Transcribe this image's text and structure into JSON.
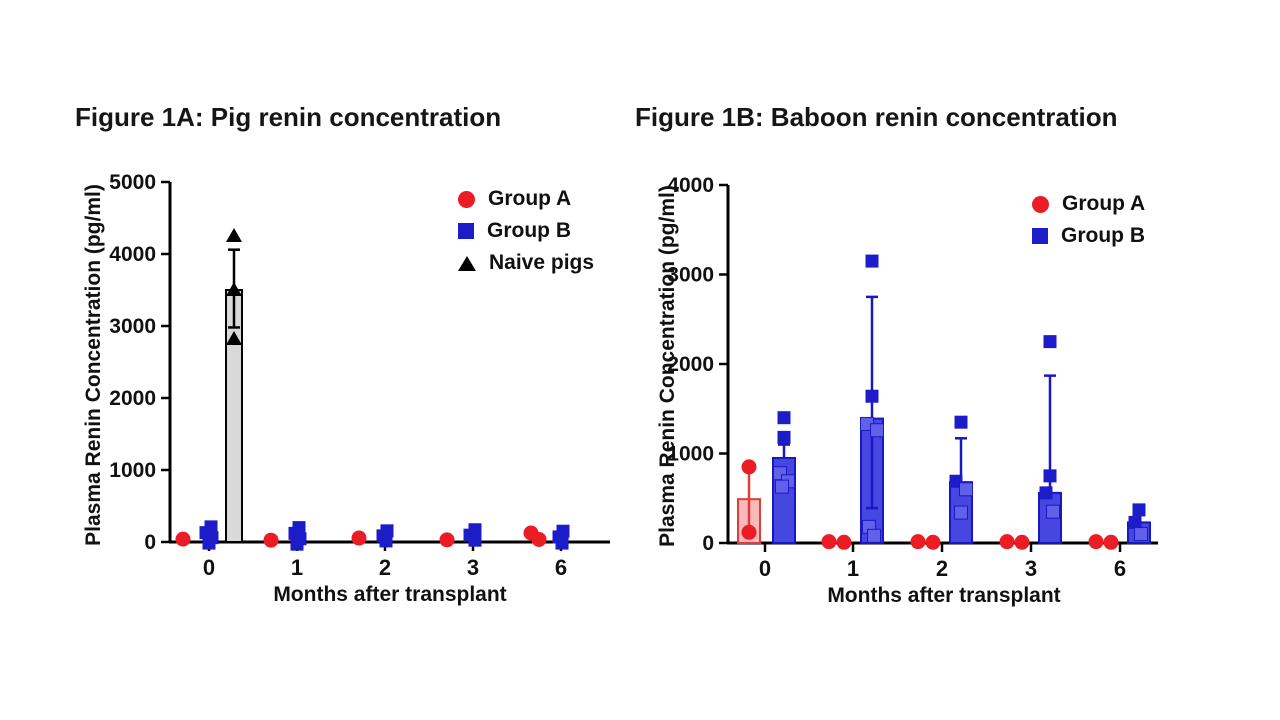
{
  "page": {
    "background": "#ffffff"
  },
  "chart_data": [
    {
      "id": "fig1a",
      "type": "scatter",
      "title": "Figure 1A: Pig renin concentration",
      "xlabel": "Months after transplant",
      "ylabel": "Plasma Renin Concentration (pg/ml)",
      "categories": [
        "0",
        "1",
        "2",
        "3",
        "6"
      ],
      "ylim": [
        0,
        5000
      ],
      "ytick_step": 1000,
      "legend_position": "top-right-inside",
      "legend": [
        {
          "label": "Group A",
          "marker": "circle",
          "color": "#ec1c24"
        },
        {
          "label": "Group B",
          "marker": "square",
          "color": "#1c1cc8"
        },
        {
          "label": "Naive pigs",
          "marker": "triangle",
          "color": "#000000"
        }
      ],
      "bars": [
        {
          "series": "Naive pigs",
          "category_index": 0,
          "mean": 3500,
          "err_low": 2980,
          "err_high": 4060,
          "fill": "#d9d9d9",
          "stroke": "#000000"
        }
      ],
      "series": [
        {
          "name": "Group A",
          "marker": "circle",
          "color": "#ec1c24",
          "points": [
            [
              0,
              40,
              0
            ],
            [
              1,
              25,
              0
            ],
            [
              2,
              55,
              0
            ],
            [
              3,
              30,
              0
            ],
            [
              4,
              125,
              -4
            ],
            [
              4,
              35,
              4
            ]
          ]
        },
        {
          "name": "Group B",
          "marker": "square",
          "color": "#1c1cc8",
          "points": [
            [
              0,
              210,
              2
            ],
            [
              0,
              130,
              -3
            ],
            [
              0,
              60,
              3
            ],
            [
              0,
              -15,
              0
            ],
            [
              1,
              200,
              2
            ],
            [
              1,
              120,
              -2
            ],
            [
              1,
              45,
              3
            ],
            [
              1,
              -30,
              0
            ],
            [
              2,
              155,
              2
            ],
            [
              2,
              85,
              -2
            ],
            [
              2,
              15,
              1
            ],
            [
              3,
              170,
              2
            ],
            [
              3,
              95,
              -3
            ],
            [
              3,
              25,
              2
            ],
            [
              4,
              150,
              2
            ],
            [
              4,
              70,
              -2
            ],
            [
              4,
              -15,
              1
            ]
          ]
        },
        {
          "name": "Naive pigs",
          "marker": "triangle",
          "color": "#000000",
          "points": [
            [
              0,
              4250,
              0
            ],
            [
              0,
              3500,
              0
            ],
            [
              0,
              2820,
              0
            ]
          ]
        }
      ]
    },
    {
      "id": "fig1b",
      "type": "scatter",
      "title": "Figure 1B: Baboon renin concentration",
      "xlabel": "Months after transplant",
      "ylabel": "Plasma Renin Concentration (pg/ml)",
      "categories": [
        "0",
        "1",
        "2",
        "3",
        "6"
      ],
      "ylim": [
        0,
        4000
      ],
      "ytick_step": 1000,
      "legend_position": "top-right-inside",
      "legend": [
        {
          "label": "Group A",
          "marker": "circle",
          "color": "#ec1c24"
        },
        {
          "label": "Group B",
          "marker": "square",
          "color": "#1c1cc8"
        }
      ],
      "bars": [
        {
          "series": "Group A",
          "category_index": 0,
          "mean": 490,
          "err_low": 120,
          "err_high": 850,
          "fill": "#f7b9b9",
          "stroke": "#e03c3c"
        },
        {
          "series": "Group B",
          "category_index": 0,
          "mean": 950,
          "err_low": null,
          "err_high": 1100,
          "fill": "#4646e0",
          "stroke": "#1818c0"
        },
        {
          "series": "Group B",
          "category_index": 1,
          "mean": 1390,
          "err_low": 390,
          "err_high": 2750,
          "fill": "#4646e0",
          "stroke": "#1818c0"
        },
        {
          "series": "Group B",
          "category_index": 2,
          "mean": 680,
          "err_low": null,
          "err_high": 1170,
          "fill": "#4646e0",
          "stroke": "#1818c0"
        },
        {
          "series": "Group B",
          "category_index": 3,
          "mean": 560,
          "err_low": null,
          "err_high": 1870,
          "fill": "#4646e0",
          "stroke": "#1818c0"
        },
        {
          "series": "Group B",
          "category_index": 4,
          "mean": 230,
          "err_low": null,
          "err_high": null,
          "fill": "#4646e0",
          "stroke": "#1818c0"
        }
      ],
      "series": [
        {
          "name": "Group A",
          "marker": "circle",
          "color": "#ec1c24",
          "points": [
            [
              0,
              850,
              0
            ],
            [
              0,
              120,
              0
            ],
            [
              1,
              15,
              -8
            ],
            [
              1,
              8,
              7
            ],
            [
              2,
              15,
              -8
            ],
            [
              2,
              8,
              7
            ],
            [
              3,
              15,
              -8
            ],
            [
              3,
              8,
              7
            ],
            [
              4,
              15,
              -8
            ],
            [
              4,
              8,
              7
            ]
          ]
        },
        {
          "name": "Group B",
          "marker": "square",
          "color": "#1c1cc8",
          "points": [
            [
              0,
              1400,
              0
            ],
            [
              0,
              1180,
              0
            ],
            [
              0,
              780,
              -4
            ],
            [
              0,
              690,
              4
            ],
            [
              0,
              630,
              -2
            ],
            [
              1,
              3150,
              0
            ],
            [
              1,
              1640,
              0
            ],
            [
              1,
              1330,
              -5
            ],
            [
              1,
              1260,
              5
            ],
            [
              1,
              180,
              -3
            ],
            [
              1,
              80,
              2
            ],
            [
              2,
              1350,
              0
            ],
            [
              2,
              690,
              -5
            ],
            [
              2,
              600,
              5
            ],
            [
              2,
              340,
              0
            ],
            [
              3,
              2250,
              0
            ],
            [
              3,
              750,
              0
            ],
            [
              3,
              560,
              -4
            ],
            [
              3,
              350,
              3
            ],
            [
              4,
              370,
              0
            ],
            [
              4,
              230,
              -4
            ],
            [
              4,
              100,
              2
            ]
          ]
        }
      ]
    }
  ]
}
